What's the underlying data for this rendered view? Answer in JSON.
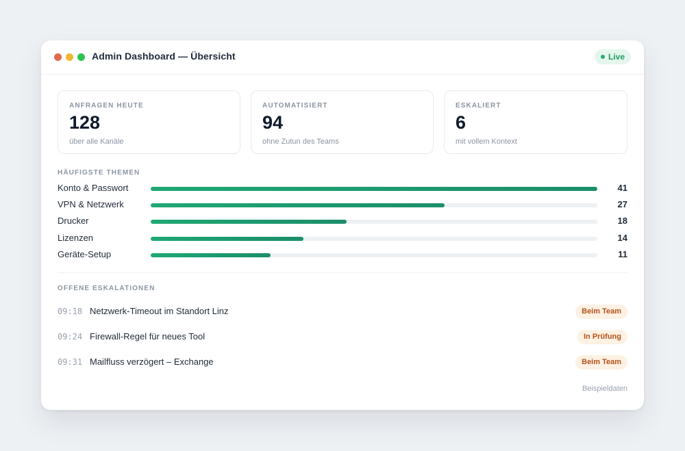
{
  "window": {
    "title": "Admin Dashboard — Übersicht",
    "status": "Live",
    "controls": [
      "close",
      "minimize",
      "maximize"
    ]
  },
  "stats": [
    {
      "label": "ANFRAGEN HEUTE",
      "value": "128",
      "sub": "über alle Kanäle"
    },
    {
      "label": "AUTOMATISIERT",
      "value": "94",
      "sub": "ohne Zutun des Teams"
    },
    {
      "label": "ESKALIERT",
      "value": "6",
      "sub": "mit vollem Kontext"
    }
  ],
  "topics": {
    "heading": "HÄUFIGSTE THEMEN",
    "max": 41,
    "items": [
      {
        "label": "Konto & Passwort",
        "count": 41
      },
      {
        "label": "VPN & Netzwerk",
        "count": 27
      },
      {
        "label": "Drucker",
        "count": 18
      },
      {
        "label": "Lizenzen",
        "count": 14
      },
      {
        "label": "Geräte-Setup",
        "count": 11
      }
    ]
  },
  "escalations": {
    "heading": "OFFENE ESKALATIONEN",
    "items": [
      {
        "time": "09:18",
        "title": "Netzwerk-Timeout im Standort Linz",
        "status": "Beim Team"
      },
      {
        "time": "09:24",
        "title": "Firewall-Regel für neues Tool",
        "status": "In Prüfung"
      },
      {
        "time": "09:31",
        "title": "Mailfluss verzögert – Exchange",
        "status": "Beim Team"
      }
    ]
  },
  "footer": {
    "note": "Beispieldaten"
  },
  "colors": {
    "accent": "#1fa874",
    "badge_bg": "#fdf1e3",
    "badge_text": "#b4531b",
    "live_bg": "#e6f6ee",
    "live_text": "#1f9d62"
  }
}
